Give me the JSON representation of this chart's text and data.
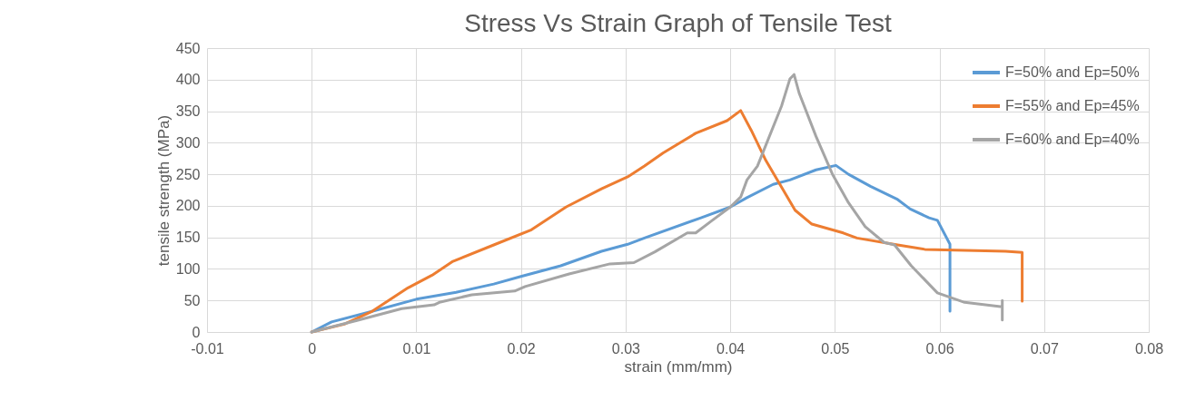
{
  "chart_data": {
    "type": "line",
    "title": "Stress Vs Strain Graph of Tensile Test",
    "xlabel": "strain (mm/mm)",
    "ylabel": "tensile strength (MPa)",
    "xlim": [
      -0.01,
      0.08
    ],
    "xticks": [
      -0.01,
      0,
      0.01,
      0.02,
      0.03,
      0.04,
      0.05,
      0.06,
      0.07,
      0.08
    ],
    "ylim": [
      0,
      450
    ],
    "yticks": [
      0,
      50,
      100,
      150,
      200,
      250,
      300,
      350,
      400,
      450
    ],
    "grid": true,
    "legend": "top right",
    "series": [
      {
        "name": "F=50% and Ep=50%",
        "color": "#5b9bd5",
        "x": [
          0,
          0.0019,
          0.0056,
          0.01,
          0.0138,
          0.0174,
          0.02,
          0.0238,
          0.0277,
          0.0302,
          0.0318,
          0.0372,
          0.04,
          0.0416,
          0.0441,
          0.0457,
          0.0482,
          0.0501,
          0.0513,
          0.0534,
          0.056,
          0.0572,
          0.059,
          0.0598,
          0.061,
          0.061
        ],
        "values": [
          0,
          16,
          32,
          52,
          63,
          76,
          88,
          105,
          128,
          139,
          149,
          181,
          198,
          213,
          234,
          241,
          257,
          264,
          250,
          231,
          210,
          195,
          181,
          177,
          139,
          33
        ]
      },
      {
        "name": "F=55% and Ep=45%",
        "color": "#ed7d31",
        "x": [
          0,
          0.0032,
          0.0058,
          0.0092,
          0.0115,
          0.0135,
          0.0174,
          0.021,
          0.0243,
          0.0277,
          0.0302,
          0.0318,
          0.0336,
          0.0367,
          0.0397,
          0.041,
          0.042,
          0.0434,
          0.0462,
          0.0478,
          0.0508,
          0.0521,
          0.056,
          0.0586,
          0.0663,
          0.0679,
          0.0679
        ],
        "values": [
          0,
          13,
          33,
          70,
          90,
          112,
          138,
          162,
          198,
          227,
          246,
          263,
          284,
          315,
          335,
          351,
          320,
          272,
          193,
          171,
          157,
          149,
          138,
          131,
          128,
          126,
          49
        ]
      },
      {
        "name": "F=60% and Ep=40%",
        "color": "#a5a5a5",
        "x": [
          0,
          0.0045,
          0.0086,
          0.0117,
          0.0122,
          0.0153,
          0.0194,
          0.0204,
          0.0246,
          0.0285,
          0.0308,
          0.0328,
          0.0359,
          0.0367,
          0.0382,
          0.04,
          0.041,
          0.0416,
          0.0426,
          0.0449,
          0.0457,
          0.0461,
          0.0466,
          0.0482,
          0.0498,
          0.0513,
          0.0529,
          0.0547,
          0.0557,
          0.0573,
          0.0598,
          0.0624,
          0.066,
          0.066,
          0.066
        ],
        "values": [
          0,
          19,
          37,
          43,
          47,
          59,
          65,
          72,
          92,
          108,
          110,
          127,
          157,
          157,
          176,
          198,
          214,
          241,
          263,
          358,
          401,
          408,
          378,
          310,
          249,
          205,
          167,
          142,
          138,
          105,
          62,
          47,
          40,
          50,
          19
        ]
      }
    ]
  }
}
